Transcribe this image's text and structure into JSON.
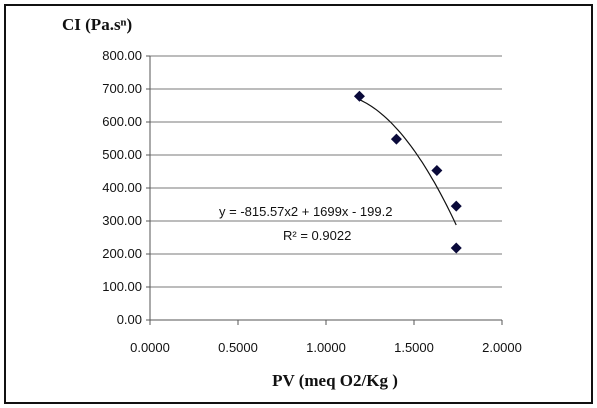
{
  "chart_data": {
    "type": "scatter",
    "ylabel": "CI (Pa.sⁿ)",
    "xlabel": "PV (meq O2/Kg )",
    "xlim": [
      0,
      2
    ],
    "ylim": [
      0,
      800
    ],
    "x_ticks": [
      "0.0000",
      "0.5000",
      "1.0000",
      "1.5000",
      "2.0000"
    ],
    "y_ticks": [
      "0.00",
      "100.00",
      "200.00",
      "300.00",
      "400.00",
      "500.00",
      "600.00",
      "700.00",
      "800.00"
    ],
    "grid": "horizontal",
    "points": [
      {
        "x": 1.19,
        "y": 678
      },
      {
        "x": 1.4,
        "y": 548
      },
      {
        "x": 1.63,
        "y": 453
      },
      {
        "x": 1.74,
        "y": 345
      },
      {
        "x": 1.74,
        "y": 218
      }
    ],
    "trendline": {
      "type": "polynomial",
      "coefficients": [
        -815.57,
        1699,
        -199.2
      ],
      "equation": "y = -815.57x2 + 1699x - 199.2",
      "r2": "R² = 0.9022"
    },
    "colors": {
      "marker": "#0a0a3a",
      "line": "#111111",
      "grid": "#7a7a7a"
    }
  }
}
